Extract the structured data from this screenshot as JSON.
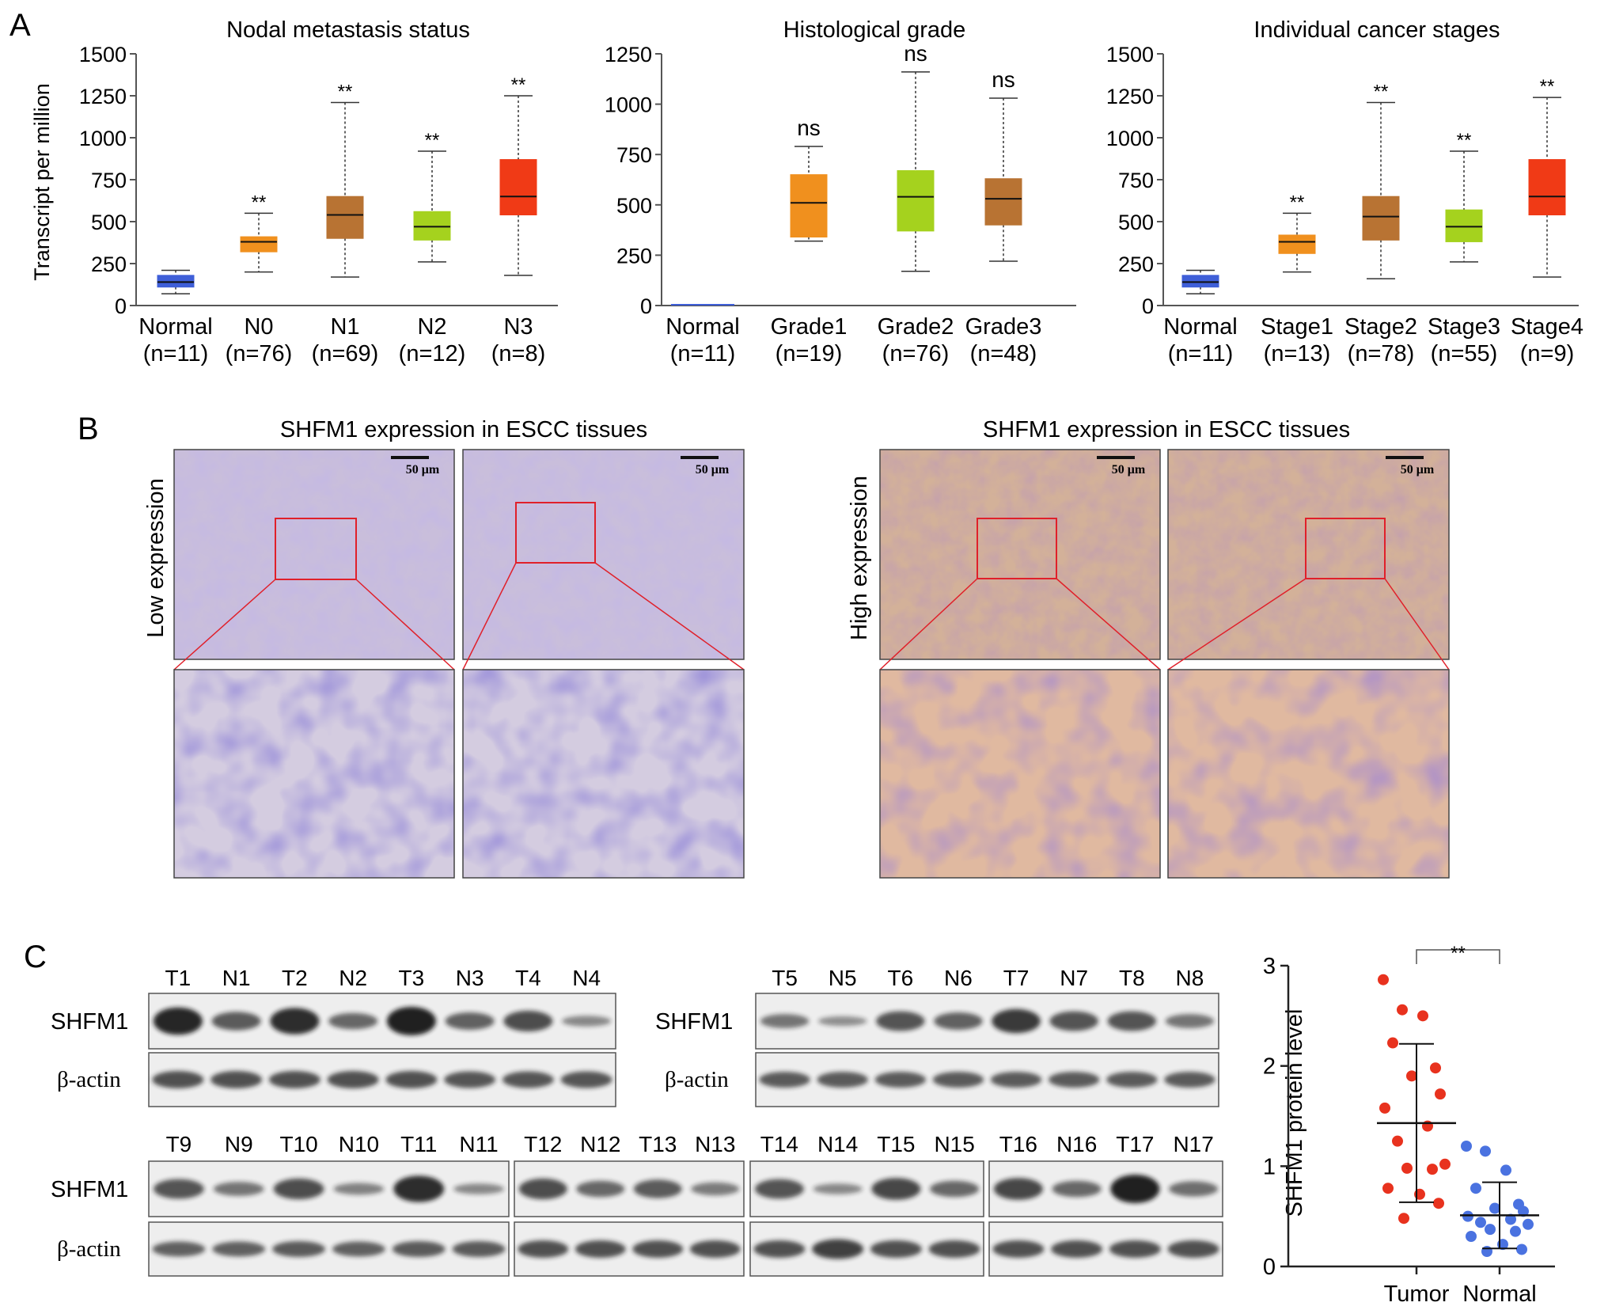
{
  "panels": {
    "A": {
      "label": "A",
      "ylabel": "Transcript per million",
      "significance_marker": "**",
      "ns_marker": "ns"
    },
    "B": {
      "label": "B",
      "left_title": "SHFM1 expression in ESCC tissues",
      "right_title": "SHFM1 expression in ESCC tissues",
      "low_label": "Low expression",
      "high_label": "High expression",
      "scale_bar": "50 μm"
    },
    "C": {
      "label": "C",
      "protein_label": "SHFM1",
      "actin_label": "β-actin",
      "blot_groups": [
        {
          "lanes": [
            "T1",
            "N1",
            "T2",
            "N2",
            "T3",
            "N3",
            "T4",
            "N4"
          ],
          "shfm1": [
            0.95,
            0.55,
            0.9,
            0.45,
            1.0,
            0.5,
            0.65,
            0.2
          ],
          "actin": [
            0.6,
            0.6,
            0.6,
            0.6,
            0.6,
            0.55,
            0.55,
            0.55
          ]
        },
        {
          "lanes": [
            "T5",
            "N5",
            "T6",
            "N6",
            "T7",
            "N7",
            "T8",
            "N8"
          ],
          "shfm1": [
            0.35,
            0.15,
            0.6,
            0.5,
            0.8,
            0.6,
            0.6,
            0.35
          ],
          "actin": [
            0.5,
            0.5,
            0.5,
            0.5,
            0.5,
            0.5,
            0.5,
            0.5
          ]
        },
        {
          "lanes": [
            "T9",
            "N9",
            "T10",
            "N10",
            "T11",
            "N11"
          ],
          "shfm1": [
            0.6,
            0.35,
            0.65,
            0.25,
            0.9,
            0.2
          ],
          "actin": [
            0.45,
            0.45,
            0.5,
            0.45,
            0.5,
            0.5
          ]
        },
        {
          "lanes": [
            "T12",
            "N12",
            "T13",
            "N13"
          ],
          "shfm1": [
            0.65,
            0.45,
            0.55,
            0.3
          ],
          "actin": [
            0.6,
            0.6,
            0.6,
            0.6
          ]
        },
        {
          "lanes": [
            "T14",
            "N14",
            "T15",
            "N15"
          ],
          "shfm1": [
            0.6,
            0.2,
            0.7,
            0.45
          ],
          "actin": [
            0.6,
            0.75,
            0.6,
            0.6
          ]
        },
        {
          "lanes": [
            "T16",
            "N16",
            "T17",
            "N17"
          ],
          "shfm1": [
            0.7,
            0.45,
            1.0,
            0.4
          ],
          "actin": [
            0.6,
            0.6,
            0.6,
            0.6
          ]
        }
      ]
    }
  },
  "chart_data": [
    {
      "type": "box",
      "title": "Nodal metastasis status",
      "ylabel": "Transcript per million",
      "ylim": [
        0,
        1500
      ],
      "yticks": [
        0,
        250,
        500,
        750,
        1000,
        1250,
        1500
      ],
      "categories": [
        "Normal",
        "N0",
        "N1",
        "N2",
        "N3"
      ],
      "counts": [
        "(n=11)",
        "(n=76)",
        "(n=69)",
        "(n=12)",
        "(n=8)"
      ],
      "colors": [
        "#3f5fd8",
        "#f0901e",
        "#b87333",
        "#a5d21e",
        "#f03a16"
      ],
      "boxes": [
        {
          "min": 70,
          "q1": 110,
          "median": 140,
          "q3": 180,
          "max": 210
        },
        {
          "min": 200,
          "q1": 320,
          "median": 380,
          "q3": 410,
          "max": 550
        },
        {
          "min": 170,
          "q1": 400,
          "median": 540,
          "q3": 650,
          "max": 1210
        },
        {
          "min": 260,
          "q1": 390,
          "median": 470,
          "q3": 560,
          "max": 920
        },
        {
          "min": 180,
          "q1": 540,
          "median": 650,
          "q3": 870,
          "max": 1250
        }
      ],
      "significance": [
        "",
        "**",
        "**",
        "**",
        "**"
      ]
    },
    {
      "type": "box",
      "title": "Histological grade",
      "ylim": [
        0,
        1250
      ],
      "yticks": [
        0,
        250,
        500,
        750,
        1000,
        1250
      ],
      "categories": [
        "Normal",
        "Grade1",
        "Grade2",
        "Grade3"
      ],
      "counts": [
        "(n=11)",
        "(n=19)",
        "(n=76)",
        "(n=48)"
      ],
      "colors": [
        "#3f5fd8",
        "#f0901e",
        "#a5d21e",
        "#b87333"
      ],
      "boxes": [
        {
          "min": 0,
          "q1": 0,
          "median": 0,
          "q3": 0,
          "max": 0
        },
        {
          "min": 320,
          "q1": 340,
          "median": 510,
          "q3": 650,
          "max": 790
        },
        {
          "min": 170,
          "q1": 370,
          "median": 540,
          "q3": 670,
          "max": 1160
        },
        {
          "min": 220,
          "q1": 400,
          "median": 530,
          "q3": 630,
          "max": 1030
        }
      ],
      "significance": [
        "",
        "ns",
        "ns",
        "ns"
      ]
    },
    {
      "type": "box",
      "title": "Individual cancer stages",
      "ylim": [
        0,
        1500
      ],
      "yticks": [
        0,
        250,
        500,
        750,
        1000,
        1250,
        1500
      ],
      "categories": [
        "Normal",
        "Stage1",
        "Stage2",
        "Stage3",
        "Stage4"
      ],
      "counts": [
        "(n=11)",
        "(n=13)",
        "(n=78)",
        "(n=55)",
        "(n=9)"
      ],
      "colors": [
        "#3f5fd8",
        "#f0901e",
        "#b87333",
        "#a5d21e",
        "#f03a16"
      ],
      "boxes": [
        {
          "min": 70,
          "q1": 110,
          "median": 140,
          "q3": 180,
          "max": 210
        },
        {
          "min": 200,
          "q1": 310,
          "median": 380,
          "q3": 420,
          "max": 550
        },
        {
          "min": 160,
          "q1": 390,
          "median": 530,
          "q3": 650,
          "max": 1210
        },
        {
          "min": 260,
          "q1": 380,
          "median": 470,
          "q3": 570,
          "max": 920
        },
        {
          "min": 170,
          "q1": 540,
          "median": 650,
          "q3": 870,
          "max": 1240
        }
      ],
      "significance": [
        "",
        "**",
        "**",
        "**",
        "**"
      ]
    },
    {
      "type": "scatter",
      "ylabel": "SHFM1 protein level",
      "ylim": [
        0,
        3
      ],
      "yticks": [
        0,
        1,
        2,
        3
      ],
      "categories": [
        "Tumor",
        "Normal"
      ],
      "colors": [
        "#e8321e",
        "#4a72e0"
      ],
      "significance": "**",
      "series": [
        {
          "name": "Tumor",
          "mean": 1.43,
          "sd_low": 0.64,
          "sd_high": 2.22,
          "values": [
            2.86,
            2.56,
            2.5,
            2.23,
            1.98,
            1.9,
            1.72,
            1.58,
            1.4,
            1.25,
            1.02,
            0.98,
            0.97,
            0.78,
            0.72,
            0.63,
            0.48
          ]
        },
        {
          "name": "Normal",
          "mean": 0.51,
          "sd_low": 0.18,
          "sd_high": 0.84,
          "values": [
            1.2,
            1.15,
            0.96,
            0.78,
            0.62,
            0.58,
            0.55,
            0.5,
            0.47,
            0.44,
            0.42,
            0.37,
            0.35,
            0.3,
            0.22,
            0.17,
            0.15
          ]
        }
      ]
    }
  ]
}
